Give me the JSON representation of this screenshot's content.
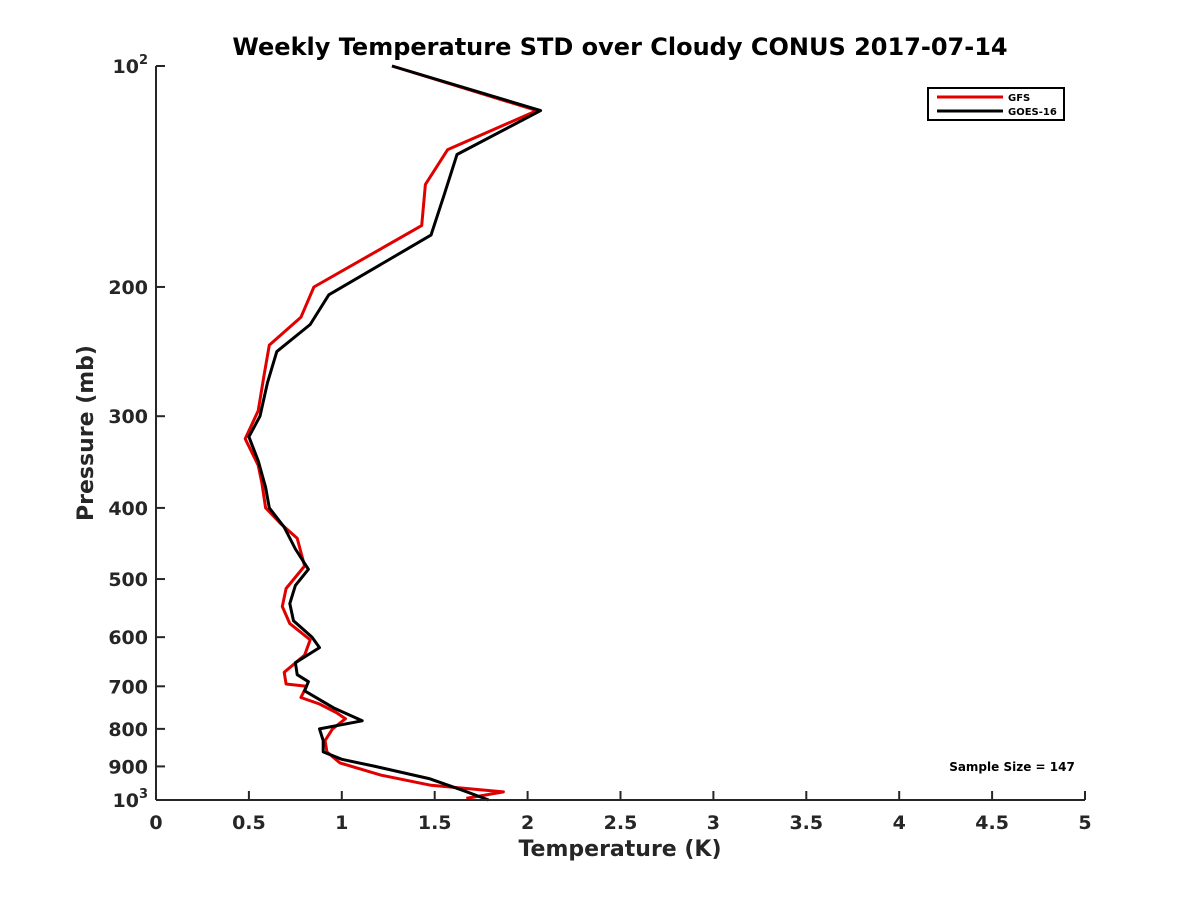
{
  "chart_data": {
    "type": "line",
    "title": "Weekly Temperature STD over Cloudy CONUS 2017-07-14",
    "xlabel": "Temperature (K)",
    "ylabel": "Pressure (mb)",
    "xlim": [
      0,
      5
    ],
    "ylim": [
      100,
      1000
    ],
    "y_scale": "log",
    "y_reversed": true,
    "x_ticks": [
      "0",
      "0.5",
      "1",
      "1.5",
      "2",
      "2.5",
      "3",
      "3.5",
      "4",
      "4.5",
      "5"
    ],
    "y_ticks": [
      {
        "value": 100,
        "label": "10",
        "sup": "2"
      },
      {
        "value": 200,
        "label": "200",
        "sup": ""
      },
      {
        "value": 300,
        "label": "300",
        "sup": ""
      },
      {
        "value": 400,
        "label": "400",
        "sup": ""
      },
      {
        "value": 500,
        "label": "500",
        "sup": ""
      },
      {
        "value": 600,
        "label": "600",
        "sup": ""
      },
      {
        "value": 700,
        "label": "700",
        "sup": ""
      },
      {
        "value": 800,
        "label": "800",
        "sup": ""
      },
      {
        "value": 900,
        "label": "900",
        "sup": ""
      },
      {
        "value": 1000,
        "label": "10",
        "sup": "3"
      }
    ],
    "grid": false,
    "legend_position": "top-right",
    "annotation": "Sample Size = 147",
    "series": [
      {
        "name": "GFS",
        "color": "#e00000",
        "points": [
          [
            1.27,
            100
          ],
          [
            2.05,
            115
          ],
          [
            1.57,
            130
          ],
          [
            1.45,
            145
          ],
          [
            1.43,
            165
          ],
          [
            0.85,
            200
          ],
          [
            0.78,
            220
          ],
          [
            0.61,
            240
          ],
          [
            0.58,
            265
          ],
          [
            0.55,
            295
          ],
          [
            0.48,
            322
          ],
          [
            0.55,
            350
          ],
          [
            0.57,
            370
          ],
          [
            0.59,
            400
          ],
          [
            0.67,
            420
          ],
          [
            0.76,
            440
          ],
          [
            0.8,
            480
          ],
          [
            0.7,
            515
          ],
          [
            0.68,
            545
          ],
          [
            0.72,
            575
          ],
          [
            0.83,
            605
          ],
          [
            0.8,
            635
          ],
          [
            0.69,
            670
          ],
          [
            0.7,
            695
          ],
          [
            0.81,
            700
          ],
          [
            0.78,
            725
          ],
          [
            0.88,
            740
          ],
          [
            0.97,
            760
          ],
          [
            1.02,
            775
          ],
          [
            0.95,
            800
          ],
          [
            0.91,
            830
          ],
          [
            0.92,
            860
          ],
          [
            0.99,
            890
          ],
          [
            1.21,
            925
          ],
          [
            1.48,
            955
          ],
          [
            1.87,
            975
          ],
          [
            1.67,
            995
          ]
        ]
      },
      {
        "name": "GOES-16",
        "color": "#000000",
        "points": [
          [
            1.27,
            100
          ],
          [
            2.07,
            115
          ],
          [
            1.62,
            132
          ],
          [
            1.55,
            150
          ],
          [
            1.48,
            170
          ],
          [
            0.93,
            205
          ],
          [
            0.83,
            225
          ],
          [
            0.65,
            245
          ],
          [
            0.6,
            270
          ],
          [
            0.56,
            300
          ],
          [
            0.5,
            320
          ],
          [
            0.55,
            345
          ],
          [
            0.59,
            375
          ],
          [
            0.61,
            400
          ],
          [
            0.69,
            425
          ],
          [
            0.75,
            455
          ],
          [
            0.82,
            485
          ],
          [
            0.75,
            510
          ],
          [
            0.72,
            540
          ],
          [
            0.74,
            570
          ],
          [
            0.84,
            600
          ],
          [
            0.88,
            620
          ],
          [
            0.75,
            650
          ],
          [
            0.76,
            675
          ],
          [
            0.82,
            690
          ],
          [
            0.8,
            710
          ],
          [
            0.96,
            750
          ],
          [
            1.11,
            780
          ],
          [
            0.88,
            800
          ],
          [
            0.9,
            830
          ],
          [
            0.9,
            860
          ],
          [
            1.0,
            880
          ],
          [
            1.18,
            900
          ],
          [
            1.47,
            935
          ],
          [
            1.65,
            970
          ],
          [
            1.79,
            1000
          ]
        ]
      }
    ]
  }
}
